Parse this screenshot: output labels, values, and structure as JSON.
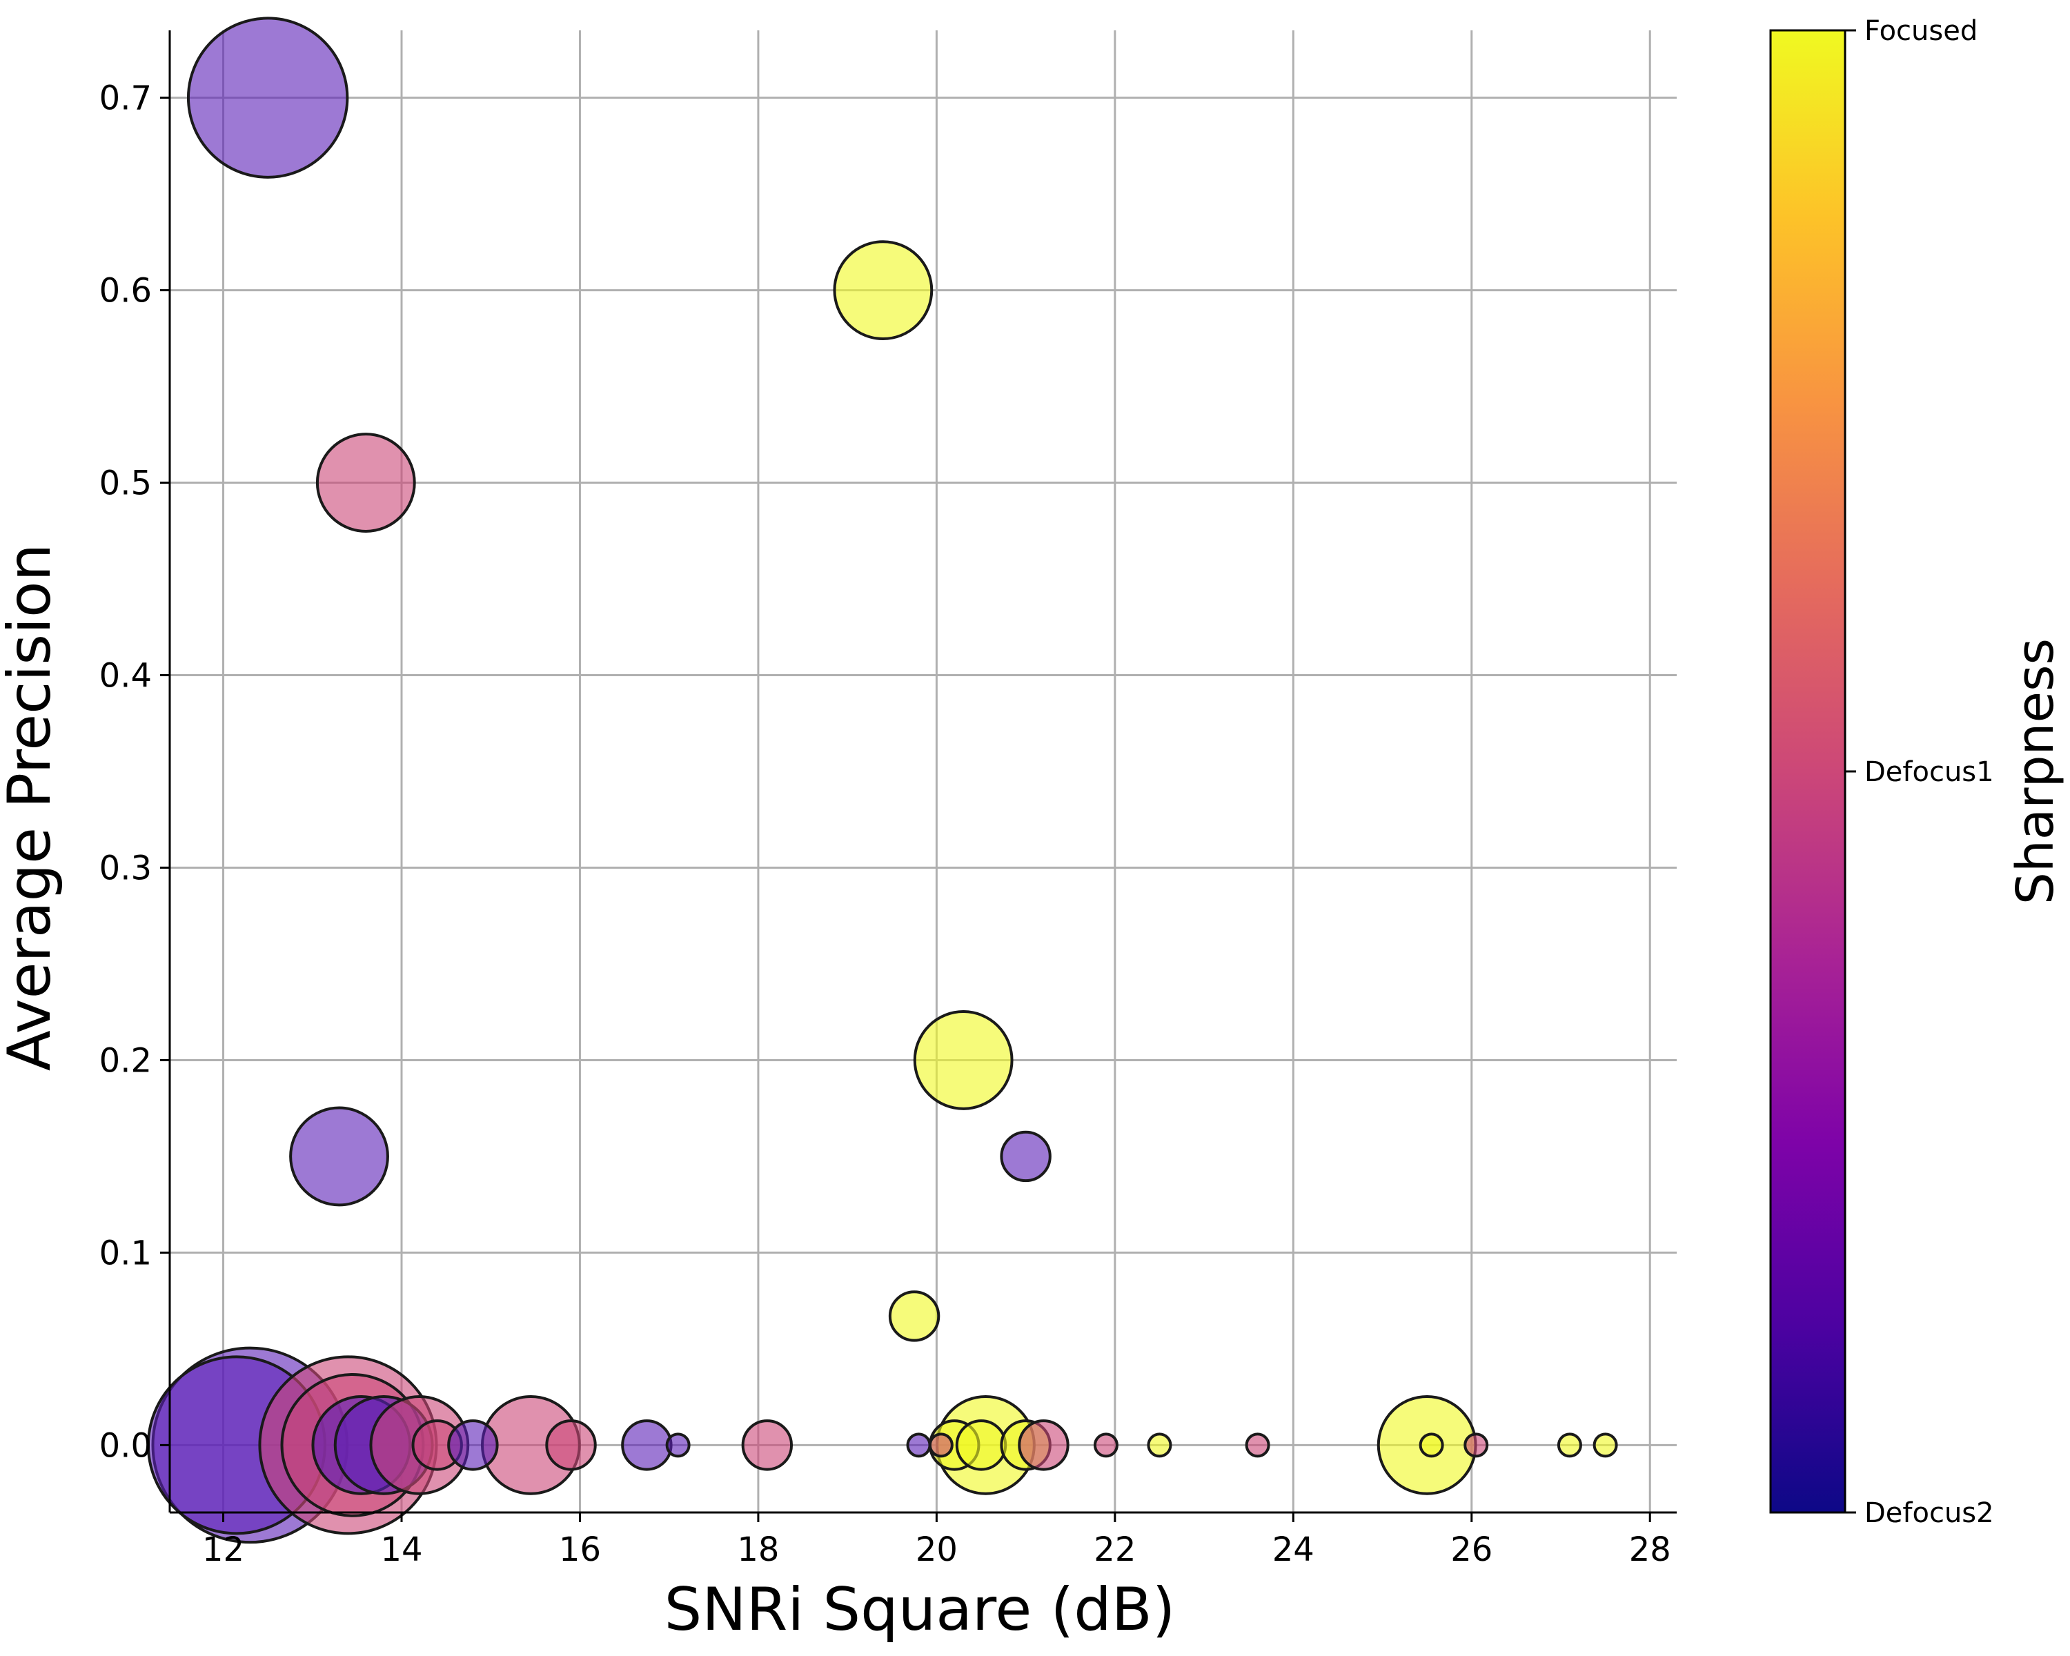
{
  "chart_data": {
    "type": "scatter",
    "title": "",
    "xlabel": "SNRi Square (dB)",
    "ylabel": "Average Precision",
    "xlim": [
      11.4,
      28.3
    ],
    "ylim": [
      -0.035,
      0.735
    ],
    "xticks": [
      12,
      14,
      16,
      18,
      20,
      22,
      24,
      26,
      28
    ],
    "yticks": [
      0.0,
      0.1,
      0.2,
      0.3,
      0.4,
      0.5,
      0.6,
      0.7
    ],
    "xtick_labels": [
      "12",
      "14",
      "16",
      "18",
      "20",
      "22",
      "24",
      "26",
      "28"
    ],
    "ytick_labels": [
      "0.0",
      "0.1",
      "0.2",
      "0.3",
      "0.4",
      "0.5",
      "0.6",
      "0.7"
    ],
    "grid": true,
    "colorbar": {
      "label": "Sharpness",
      "ticks": [
        "Defocus2",
        "Defocus1",
        "Focused"
      ],
      "colormap": "plasma"
    },
    "size_encoding": "relative bubble size",
    "colors": {
      "Focused": "#f0f921",
      "Defocus1": "#cc4778",
      "Defocus2": "#5c1fb8"
    },
    "points": [
      {
        "x": 12.5,
        "y": 0.7,
        "size": 36,
        "sharpness": "Defocus2"
      },
      {
        "x": 19.4,
        "y": 0.6,
        "size": 22,
        "sharpness": "Focused"
      },
      {
        "x": 13.6,
        "y": 0.5,
        "size": 22,
        "sharpness": "Defocus1"
      },
      {
        "x": 20.3,
        "y": 0.2,
        "size": 22,
        "sharpness": "Focused"
      },
      {
        "x": 13.3,
        "y": 0.15,
        "size": 22,
        "sharpness": "Defocus2"
      },
      {
        "x": 21.0,
        "y": 0.15,
        "size": 11,
        "sharpness": "Defocus2"
      },
      {
        "x": 19.75,
        "y": 0.067,
        "size": 11,
        "sharpness": "Focused"
      },
      {
        "x": 12.15,
        "y": 0.0,
        "size": 40,
        "sharpness": "Defocus2"
      },
      {
        "x": 12.3,
        "y": 0.0,
        "size": 44,
        "sharpness": "Defocus2"
      },
      {
        "x": 13.45,
        "y": 0.0,
        "size": 32,
        "sharpness": "Defocus1"
      },
      {
        "x": 13.4,
        "y": 0.0,
        "size": 40,
        "sharpness": "Defocus1"
      },
      {
        "x": 13.55,
        "y": 0.0,
        "size": 22,
        "sharpness": "Defocus2"
      },
      {
        "x": 13.8,
        "y": 0.0,
        "size": 22,
        "sharpness": "Defocus2"
      },
      {
        "x": 14.2,
        "y": 0.0,
        "size": 22,
        "sharpness": "Defocus1"
      },
      {
        "x": 14.4,
        "y": 0.0,
        "size": 11,
        "sharpness": "Defocus1"
      },
      {
        "x": 14.8,
        "y": 0.0,
        "size": 11,
        "sharpness": "Defocus2"
      },
      {
        "x": 15.45,
        "y": 0.0,
        "size": 22,
        "sharpness": "Defocus1"
      },
      {
        "x": 15.9,
        "y": 0.0,
        "size": 11,
        "sharpness": "Defocus1"
      },
      {
        "x": 16.75,
        "y": 0.0,
        "size": 11,
        "sharpness": "Defocus2"
      },
      {
        "x": 17.1,
        "y": 0.0,
        "size": 5,
        "sharpness": "Defocus2"
      },
      {
        "x": 18.1,
        "y": 0.0,
        "size": 11,
        "sharpness": "Defocus1"
      },
      {
        "x": 19.8,
        "y": 0.0,
        "size": 5,
        "sharpness": "Defocus2"
      },
      {
        "x": 20.05,
        "y": 0.0,
        "size": 5,
        "sharpness": "Defocus1"
      },
      {
        "x": 20.2,
        "y": 0.0,
        "size": 11,
        "sharpness": "Focused"
      },
      {
        "x": 20.5,
        "y": 0.0,
        "size": 11,
        "sharpness": "Focused"
      },
      {
        "x": 20.55,
        "y": 0.0,
        "size": 22,
        "sharpness": "Focused"
      },
      {
        "x": 21.0,
        "y": 0.0,
        "size": 11,
        "sharpness": "Focused"
      },
      {
        "x": 21.2,
        "y": 0.0,
        "size": 11,
        "sharpness": "Defocus1"
      },
      {
        "x": 21.9,
        "y": 0.0,
        "size": 5,
        "sharpness": "Defocus1"
      },
      {
        "x": 22.5,
        "y": 0.0,
        "size": 5,
        "sharpness": "Focused"
      },
      {
        "x": 23.6,
        "y": 0.0,
        "size": 5,
        "sharpness": "Defocus1"
      },
      {
        "x": 25.5,
        "y": 0.0,
        "size": 22,
        "sharpness": "Focused"
      },
      {
        "x": 25.55,
        "y": 0.0,
        "size": 5,
        "sharpness": "Focused"
      },
      {
        "x": 26.05,
        "y": 0.0,
        "size": 5,
        "sharpness": "Defocus1"
      },
      {
        "x": 27.1,
        "y": 0.0,
        "size": 5,
        "sharpness": "Focused"
      },
      {
        "x": 27.5,
        "y": 0.0,
        "size": 5,
        "sharpness": "Focused"
      }
    ]
  }
}
